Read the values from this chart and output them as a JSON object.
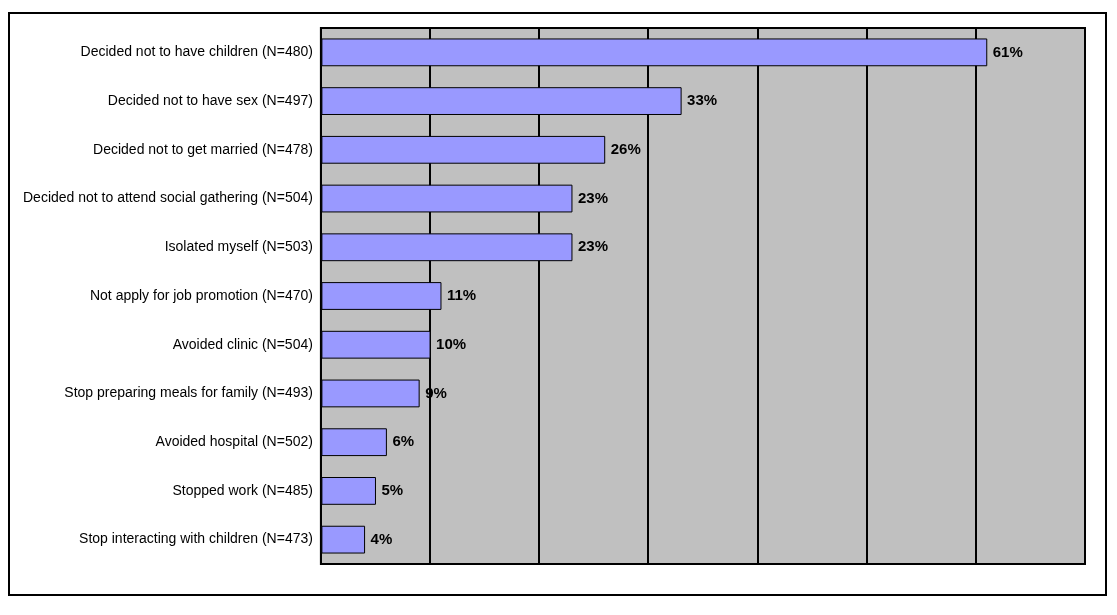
{
  "chart_data": {
    "type": "bar",
    "orientation": "horizontal",
    "categories": [
      "Decided not to have children (N=480)",
      "Decided not to have sex (N=497)",
      "Decided not to get married (N=478)",
      "Decided not to attend social gathering (N=504)",
      "Isolated myself (N=503)",
      "Not apply for job promotion (N=470)",
      "Avoided clinic (N=504)",
      "Stop preparing meals for family (N=493)",
      "Avoided hospital (N=502)",
      "Stopped work (N=485)",
      "Stop interacting with children (N=473)"
    ],
    "values": [
      61,
      33,
      26,
      23,
      23,
      11,
      10,
      9,
      6,
      5,
      4
    ],
    "value_labels": [
      "61%",
      "33%",
      "26%",
      "23%",
      "23%",
      "11%",
      "10%",
      "9%",
      "6%",
      "5%",
      "4%"
    ],
    "color": "#9999ff",
    "tick_labels": "y",
    "grid": "x",
    "legend": false
  }
}
